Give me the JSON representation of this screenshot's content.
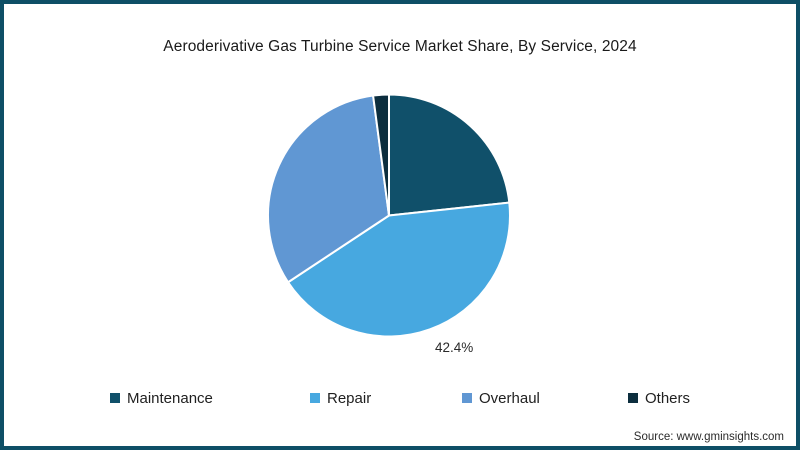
{
  "page": {
    "background": "#ffffff",
    "border_color": "#0e4f66",
    "source_text": "Source: www.gminsights.com"
  },
  "chart_data": {
    "type": "pie",
    "title": "Aeroderivative Gas Turbine Service Market Share, By Service, 2024",
    "categories": [
      "Maintenance",
      "Repair",
      "Overhaul",
      "Others"
    ],
    "values": [
      23.3,
      42.4,
      32.2,
      2.1
    ],
    "colors": [
      "#10506a",
      "#47a8e0",
      "#6097d3",
      "#0c2e3e"
    ],
    "data_label": {
      "category": "Repair",
      "text": "42.4%"
    },
    "slice_border_color": "#ffffff",
    "start_angle_deg": 0,
    "direction": "clockwise",
    "legend_position": "bottom"
  }
}
